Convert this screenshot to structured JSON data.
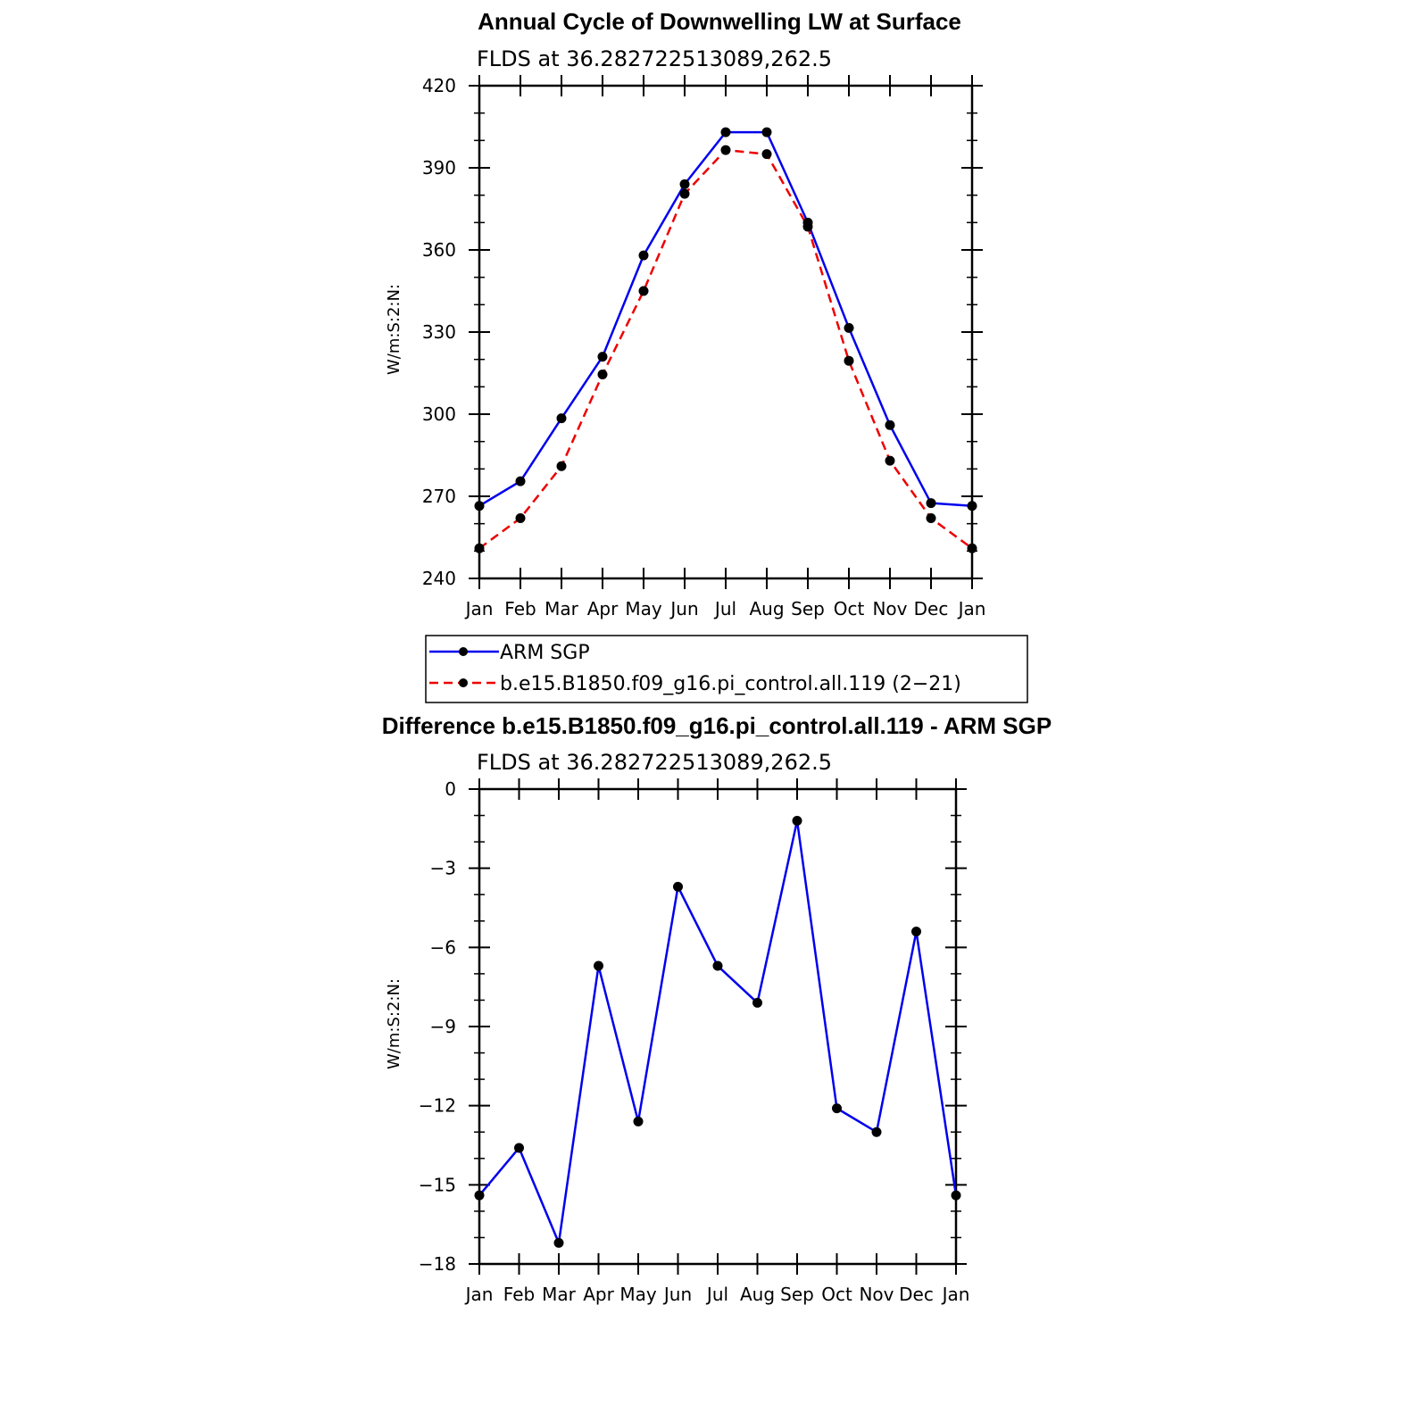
{
  "chart_data": [
    {
      "type": "line",
      "title": "Annual Cycle of Downwelling LW at Surface",
      "subtitle": "FLDS at 36.282722513089,262.5",
      "xlabel": "",
      "ylabel": "W/m:S:2:N:",
      "categories": [
        "Jan",
        "Feb",
        "Mar",
        "Apr",
        "May",
        "Jun",
        "Jul",
        "Aug",
        "Sep",
        "Oct",
        "Nov",
        "Dec",
        "Jan"
      ],
      "ylim": [
        240,
        420
      ],
      "yticks": [
        "240",
        "270",
        "300",
        "330",
        "360",
        "390",
        "420"
      ],
      "grid": false,
      "series": [
        {
          "name": "ARM SGP",
          "color": "#0000ee",
          "dash": "solid",
          "values": [
            266.5,
            275.5,
            298.5,
            321,
            358,
            384,
            403,
            403,
            370,
            331.5,
            296,
            267.5,
            266.5
          ]
        },
        {
          "name": "b.e15.B1850.f09_g16.pi_control.all.119 (2−21)",
          "color": "#ee0000",
          "dash": "dashed",
          "values": [
            251,
            262,
            281,
            314.5,
            345,
            380.5,
            396.5,
            395,
            368.5,
            319.5,
            283,
            262,
            251
          ]
        }
      ],
      "legend": "below"
    },
    {
      "type": "line",
      "title": "Difference b.e15.B1850.f09_g16.pi_control.all.119 - ARM SGP",
      "subtitle": "FLDS at 36.282722513089,262.5",
      "xlabel": "",
      "ylabel": "W/m:S:2:N:",
      "categories": [
        "Jan",
        "Feb",
        "Mar",
        "Apr",
        "May",
        "Jun",
        "Jul",
        "Aug",
        "Sep",
        "Oct",
        "Nov",
        "Dec",
        "Jan"
      ],
      "ylim": [
        -18,
        0
      ],
      "yticks": [
        "−18",
        "−15",
        "−12",
        "−9",
        "−6",
        "−3",
        "0"
      ],
      "grid": false,
      "series": [
        {
          "color": "#0000ee",
          "dash": "solid",
          "values": [
            -15.4,
            -13.6,
            -17.2,
            -6.7,
            -12.6,
            -3.7,
            -6.7,
            -8.1,
            -1.2,
            -12.1,
            -13.0,
            -5.4,
            -15.4
          ]
        }
      ]
    }
  ]
}
